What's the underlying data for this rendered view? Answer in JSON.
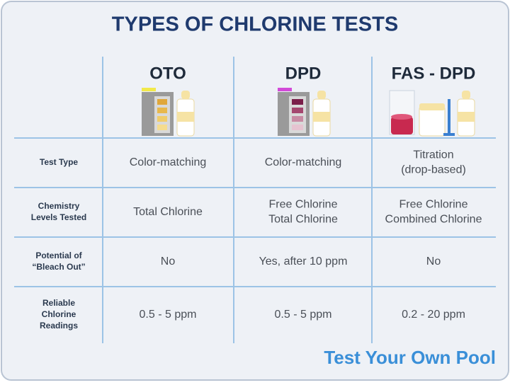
{
  "title": "TYPES OF CHLORINE TESTS",
  "table": {
    "columns": [
      "OTO",
      "DPD",
      "FAS - DPD"
    ],
    "rows": [
      {
        "label": [
          "Test Type"
        ],
        "cells": [
          [
            "Color-matching"
          ],
          [
            "Color-matching"
          ],
          [
            "Titration",
            "(drop-based)"
          ]
        ]
      },
      {
        "label": [
          "Chemistry",
          "Levels Tested"
        ],
        "cells": [
          [
            "Total Chlorine"
          ],
          [
            "Free Chlorine",
            "Total Chlorine"
          ],
          [
            "Free Chlorine",
            "Combined Chlorine"
          ]
        ]
      },
      {
        "label": [
          "Potential of",
          "“Bleach Out”"
        ],
        "cells": [
          [
            "No"
          ],
          [
            "Yes, after 10 ppm"
          ],
          [
            "No"
          ]
        ]
      },
      {
        "label": [
          "Reliable",
          "Chlorine",
          "Readings"
        ],
        "cells": [
          [
            "0.5 - 5 ppm"
          ],
          [
            "0.5 - 5 ppm"
          ],
          [
            "0.2 - 20 ppm"
          ]
        ]
      }
    ]
  },
  "brand": "Test Your Own Pool"
}
